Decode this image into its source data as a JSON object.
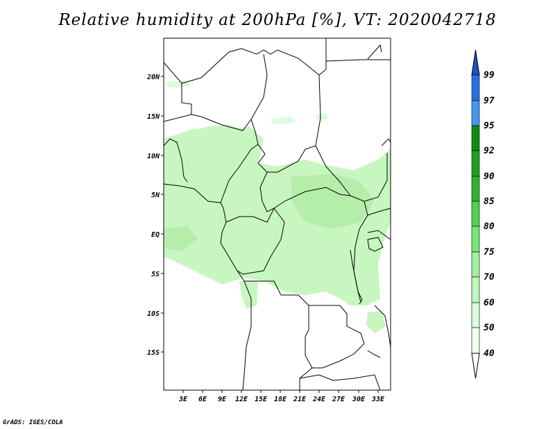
{
  "title": "Relative humidity at 200hPa [%], VT: 2020042718",
  "footer": "GrADS: IGES/COLA",
  "map": {
    "lon_labels": [
      "3E",
      "6E",
      "9E",
      "12E",
      "15E",
      "18E",
      "21E",
      "24E",
      "27E",
      "30E",
      "33E"
    ],
    "lat_labels": [
      "20N",
      "15N",
      "10N",
      "5N",
      "EQ",
      "5S",
      "10S",
      "15S"
    ]
  },
  "colorbar": {
    "levels": [
      "99",
      "97",
      "95",
      "92",
      "90",
      "85",
      "80",
      "75",
      "70",
      "60",
      "50",
      "40"
    ],
    "colors": [
      "#1e50c8",
      "#2a6ee0",
      "#4696ec",
      "#0e8c0e",
      "#1ea01e",
      "#2eb42e",
      "#50d250",
      "#78e678",
      "#a0f0a0",
      "#c0f8c0",
      "#dcfcdc",
      "#f0fff0"
    ]
  },
  "humidity_colors": {
    "light": "#c8f6c0",
    "mid": "#b4eeaa"
  }
}
